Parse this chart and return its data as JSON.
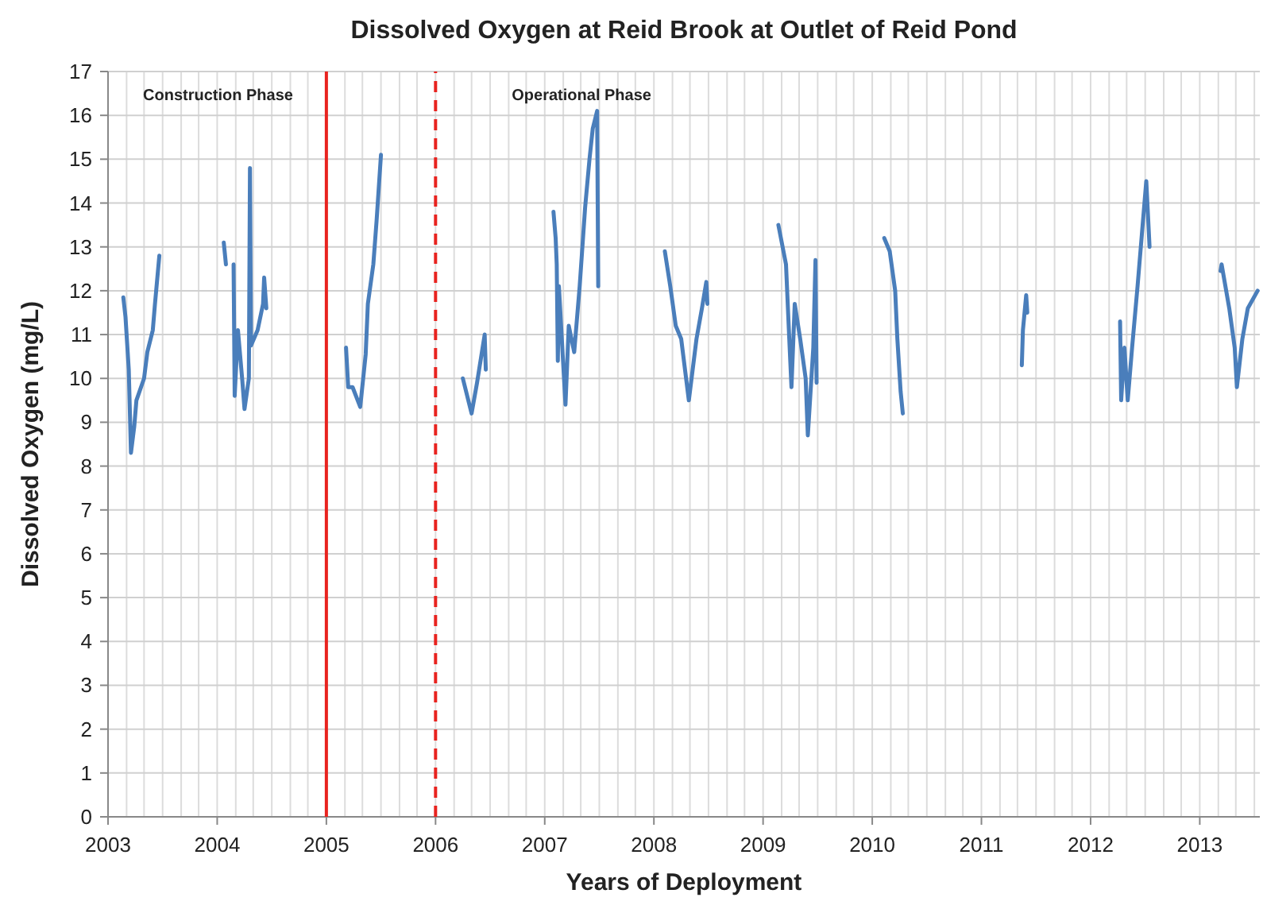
{
  "chart_data": {
    "type": "line",
    "title": "Dissolved Oxygen at Reid Brook at Outlet of Reid Pond",
    "xlabel": "Years of Deployment",
    "ylabel": "Dissolved Oxygen (mg/L)",
    "annotations": [
      "Construction Phase",
      "Operational Phase"
    ],
    "x": [
      2003.14,
      2003.16,
      2003.19,
      2003.21,
      2003.24,
      2003.26,
      2003.33,
      2003.36,
      2003.41,
      2003.43,
      2003.47,
      2003.5,
      2004.06,
      2004.08,
      2004.11,
      2004.15,
      2004.16,
      2004.19,
      2004.23,
      2004.25,
      2004.29,
      2004.3,
      2004.31,
      2004.37,
      2004.42,
      2004.43,
      2004.45,
      2004.5,
      2005.18,
      2005.2,
      2005.24,
      2005.31,
      2005.36,
      2005.38,
      2005.43,
      2005.46,
      2005.5,
      2005.55,
      2006.25,
      2006.33,
      2006.38,
      2006.45,
      2006.46,
      2006.5,
      2007.08,
      2007.1,
      2007.11,
      2007.12,
      2007.13,
      2007.19,
      2007.22,
      2007.27,
      2007.32,
      2007.37,
      2007.41,
      2007.44,
      2007.48,
      2007.49,
      2007.55,
      2008.1,
      2008.15,
      2008.2,
      2008.25,
      2008.32,
      2008.39,
      2008.44,
      2008.48,
      2008.49,
      2008.55,
      2009.14,
      2009.21,
      2009.24,
      2009.26,
      2009.29,
      2009.34,
      2009.39,
      2009.41,
      2009.46,
      2009.48,
      2009.49,
      2009.55,
      2010.11,
      2010.16,
      2010.21,
      2010.23,
      2010.26,
      2010.28,
      2010.35,
      2011.37,
      2011.38,
      2011.41,
      2011.42,
      2011.5,
      2012.27,
      2012.28,
      2012.31,
      2012.34,
      2012.38,
      2012.43,
      2012.47,
      2012.51,
      2012.54,
      2012.6,
      2013.19,
      2013.2,
      2013.27,
      2013.32,
      2013.34,
      2013.39,
      2013.44,
      2013.53
    ],
    "series": [
      {
        "color": "#4a7ebb",
        "values": [
          11.85,
          11.4,
          10.2,
          8.3,
          8.9,
          9.5,
          10.0,
          10.6,
          11.1,
          11.7,
          12.8,
          null,
          13.1,
          12.6,
          null,
          12.6,
          9.6,
          11.1,
          9.95,
          9.3,
          10.0,
          14.8,
          10.75,
          11.1,
          11.7,
          12.3,
          11.6,
          null,
          10.7,
          9.8,
          9.8,
          9.35,
          10.55,
          11.7,
          12.6,
          13.6,
          15.1,
          null,
          10.0,
          9.2,
          9.9,
          11.0,
          10.2,
          null,
          13.8,
          13.2,
          12.6,
          10.4,
          12.1,
          9.4,
          11.2,
          10.6,
          12.1,
          13.9,
          15.0,
          15.7,
          16.1,
          12.1,
          null,
          12.9,
          12.1,
          11.2,
          10.9,
          9.5,
          10.9,
          11.6,
          12.2,
          11.7,
          null,
          13.5,
          12.6,
          10.9,
          9.8,
          11.7,
          10.9,
          10.0,
          8.7,
          10.7,
          12.7,
          9.9,
          null,
          13.2,
          12.9,
          12.0,
          10.9,
          9.7,
          9.2,
          null,
          10.3,
          11.1,
          11.9,
          11.5,
          null,
          11.3,
          9.5,
          10.7,
          9.5,
          10.7,
          12.1,
          13.3,
          14.5,
          13.0,
          null,
          12.45,
          12.6,
          11.6,
          10.7,
          9.8,
          10.9,
          11.6,
          12.0
        ]
      }
    ],
    "xlim": [
      2003,
      2013.55
    ],
    "ylim": [
      0,
      17
    ],
    "xticks": [
      2003,
      {
        "value": 2003.17,
        "label": null
      },
      {
        "value": 2003.33,
        "label": null
      },
      {
        "value": 2003.5,
        "label": null
      },
      {
        "value": 2003.67,
        "label": null
      },
      {
        "value": 2003.83,
        "label": null
      },
      2004,
      {
        "value": 2004.17,
        "label": null
      },
      {
        "value": 2004.33,
        "label": null
      },
      {
        "value": 2004.5,
        "label": null
      },
      {
        "value": 2004.67,
        "label": null
      },
      {
        "value": 2004.83,
        "label": null
      },
      2005,
      {
        "value": 2005.17,
        "label": null
      },
      {
        "value": 2005.33,
        "label": null
      },
      {
        "value": 2005.5,
        "label": null
      },
      {
        "value": 2005.67,
        "label": null
      },
      {
        "value": 2005.83,
        "label": null
      },
      2006,
      {
        "value": 2006.17,
        "label": null
      },
      {
        "value": 2006.33,
        "label": null
      },
      {
        "value": 2006.5,
        "label": null
      },
      {
        "value": 2006.67,
        "label": null
      },
      {
        "value": 2006.83,
        "label": null
      },
      2007,
      {
        "value": 2007.17,
        "label": null
      },
      {
        "value": 2007.33,
        "label": null
      },
      {
        "value": 2007.5,
        "label": null
      },
      {
        "value": 2007.67,
        "label": null
      },
      {
        "value": 2007.83,
        "label": null
      },
      2008,
      {
        "value": 2008.17,
        "label": null
      },
      {
        "value": 2008.33,
        "label": null
      },
      {
        "value": 2008.5,
        "label": null
      },
      {
        "value": 2008.67,
        "label": null
      },
      {
        "value": 2008.83,
        "label": null
      },
      2009,
      {
        "value": 2009.17,
        "label": null
      },
      {
        "value": 2009.33,
        "label": null
      },
      {
        "value": 2009.5,
        "label": null
      },
      {
        "value": 2009.67,
        "label": null
      },
      {
        "value": 2009.83,
        "label": null
      },
      2010,
      {
        "value": 2010.17,
        "label": null
      },
      {
        "value": 2010.33,
        "label": null
      },
      {
        "value": 2010.5,
        "label": null
      },
      {
        "value": 2010.67,
        "label": null
      },
      {
        "value": 2010.83,
        "label": null
      },
      2011,
      {
        "value": 2011.17,
        "label": null
      },
      {
        "value": 2011.33,
        "label": null
      },
      {
        "value": 2011.5,
        "label": null
      },
      {
        "value": 2011.67,
        "label": null
      },
      {
        "value": 2011.83,
        "label": null
      },
      2012,
      {
        "value": 2012.17,
        "label": null
      },
      {
        "value": 2012.33,
        "label": null
      },
      {
        "value": 2012.5,
        "label": null
      },
      {
        "value": 2012.67,
        "label": null
      },
      {
        "value": 2012.83,
        "label": null
      },
      2013,
      {
        "value": 2013.17,
        "label": null
      },
      {
        "value": 2013.33,
        "label": null
      },
      {
        "value": 2013.5,
        "label": null
      }
    ],
    "yticks": [
      0,
      1,
      2,
      3,
      4,
      5,
      6,
      7,
      8,
      9,
      10,
      11,
      12,
      13,
      14,
      15,
      16,
      17
    ],
    "grid": true,
    "line_style": "solid",
    "marker": "none",
    "ref_lines": [
      {
        "axis": "x",
        "value": 2005,
        "color": "#e8231f",
        "line_style": "solid"
      },
      {
        "axis": "x",
        "value": 2006,
        "color": "#e8231f",
        "line_style": "dashed"
      }
    ]
  }
}
